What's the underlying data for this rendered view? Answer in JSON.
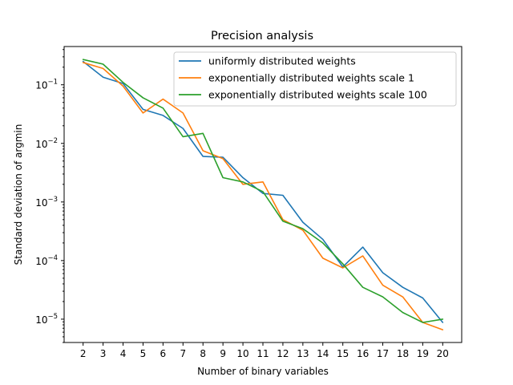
{
  "chart_data": {
    "type": "line",
    "title": "Precision analysis",
    "xlabel": "Number of binary variables",
    "ylabel": "Standard deviation of argmin",
    "x": [
      2,
      3,
      4,
      5,
      6,
      7,
      8,
      9,
      10,
      11,
      12,
      13,
      14,
      15,
      16,
      17,
      18,
      19,
      20
    ],
    "x_tick_labels": [
      "2",
      "3",
      "4",
      "5",
      "6",
      "7",
      "8",
      "9",
      "10",
      "11",
      "12",
      "13",
      "14",
      "15",
      "16",
      "17",
      "18",
      "19",
      "20"
    ],
    "xlim": [
      1.05,
      20.95
    ],
    "yscale": "log",
    "ylim": [
      4e-06,
      0.45
    ],
    "y_ticks": [
      {
        "value": 0.1,
        "base": "10",
        "exp": "−1"
      },
      {
        "value": 0.01,
        "base": "10",
        "exp": "−2"
      },
      {
        "value": 0.001,
        "base": "10",
        "exp": "−3"
      },
      {
        "value": 0.0001,
        "base": "10",
        "exp": "−4"
      },
      {
        "value": 1e-05,
        "base": "10",
        "exp": "−5"
      }
    ],
    "grid": false,
    "legend_position": "top-right",
    "series": [
      {
        "name": "uniformly distributed weights",
        "color": "#1f77b4",
        "values": [
          0.25,
          0.135,
          0.105,
          0.038,
          0.03,
          0.018,
          0.006,
          0.0058,
          0.0026,
          0.0014,
          0.0013,
          0.00045,
          0.00023,
          7.8e-05,
          0.00017,
          6.2e-05,
          3.5e-05,
          2.3e-05,
          8.8e-06
        ]
      },
      {
        "name": "exponentially distributed weights scale 1",
        "color": "#ff7f0e",
        "values": [
          0.24,
          0.19,
          0.095,
          0.033,
          0.057,
          0.033,
          0.0075,
          0.0055,
          0.002,
          0.0022,
          0.0005,
          0.00033,
          0.00011,
          7.5e-05,
          0.00012,
          3.8e-05,
          2.4e-05,
          8.8e-06,
          6.6e-06
        ]
      },
      {
        "name": "exponentially distributed weights scale 100",
        "color": "#2ca02c",
        "values": [
          0.27,
          0.225,
          0.11,
          0.06,
          0.04,
          0.013,
          0.0148,
          0.0026,
          0.0022,
          0.0015,
          0.00047,
          0.00035,
          0.0002,
          8.8e-05,
          3.5e-05,
          2.4e-05,
          1.3e-05,
          8.8e-06,
          1e-05
        ]
      }
    ]
  }
}
